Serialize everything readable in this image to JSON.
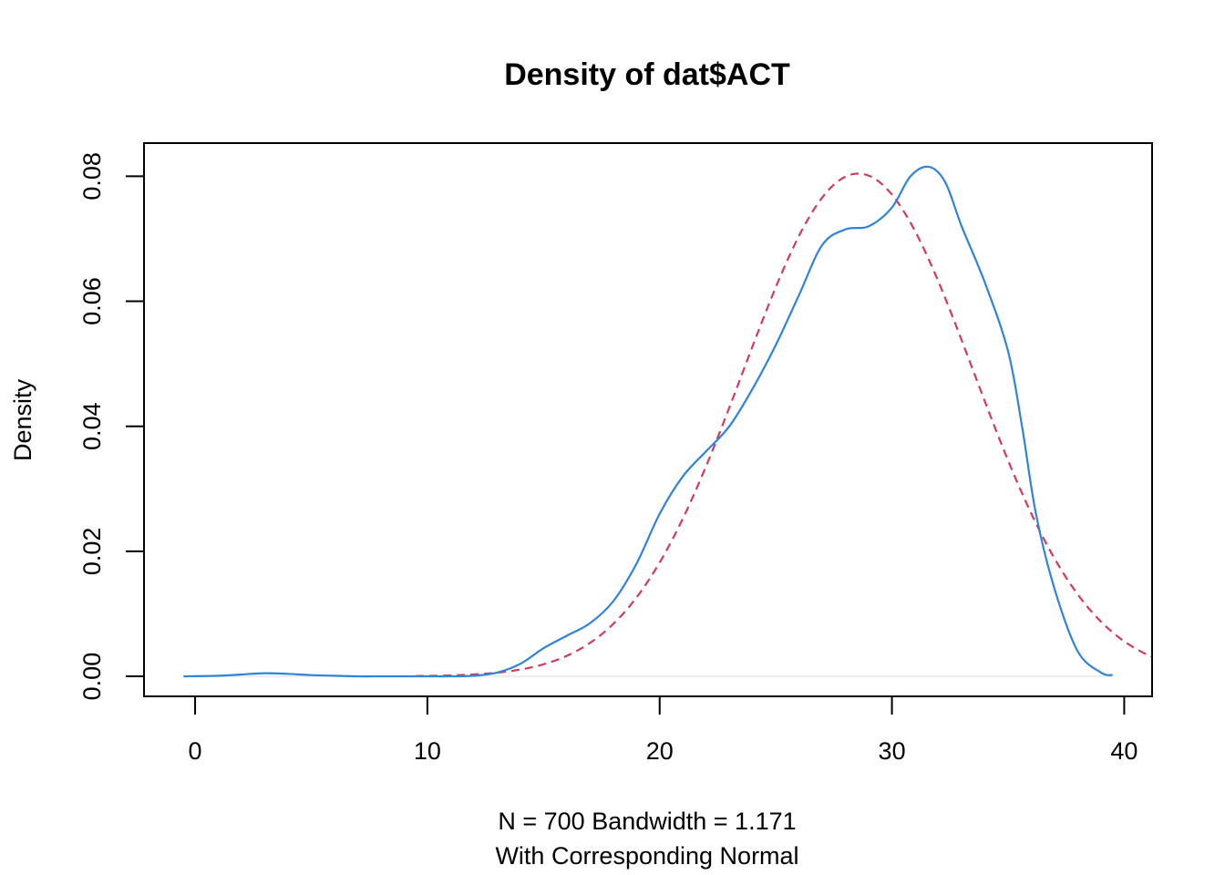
{
  "chart_data": {
    "type": "line",
    "title": "Density of  dat$ACT",
    "xlabel_line1": "N = 700   Bandwidth = 1.171",
    "xlabel_line2": "With Corresponding Normal",
    "ylabel": "Density",
    "xlim": [
      -2.2,
      41.2
    ],
    "ylim": [
      -0.0032,
      0.0853
    ],
    "x_ticks": [
      0,
      10,
      20,
      30,
      40
    ],
    "x_tick_labels": [
      "0",
      "10",
      "20",
      "30",
      "40"
    ],
    "y_ticks": [
      0.0,
      0.02,
      0.04,
      0.06,
      0.08
    ],
    "y_tick_labels": [
      "0.00",
      "0.02",
      "0.04",
      "0.06",
      "0.08"
    ],
    "grid": false,
    "zero_line": true,
    "colors": {
      "kde": "#2f83d9",
      "normal": "#d33a5c",
      "axis": "#000000",
      "zero_line": "#e8e8e8"
    },
    "series": [
      {
        "role": "kde",
        "style": "solid",
        "x": [
          -0.5,
          1,
          2,
          3,
          4,
          5,
          6,
          7,
          8,
          9,
          10,
          11,
          12,
          13,
          14,
          15,
          16,
          17,
          18,
          19,
          20,
          21,
          22,
          23,
          24,
          25,
          26,
          27,
          28,
          29,
          30,
          30.8,
          31.6,
          32.3,
          33,
          34,
          35,
          35.6,
          36.2,
          37,
          38,
          39,
          39.5
        ],
        "y": [
          0.0,
          0.0001,
          0.0003,
          0.0005,
          0.0004,
          0.0002,
          0.0001,
          0.0,
          0.0,
          0.0,
          0.0,
          0.0,
          0.0001,
          0.0006,
          0.002,
          0.0045,
          0.0065,
          0.0085,
          0.012,
          0.018,
          0.026,
          0.032,
          0.036,
          0.04,
          0.046,
          0.053,
          0.061,
          0.069,
          0.0715,
          0.072,
          0.075,
          0.08,
          0.0815,
          0.079,
          0.072,
          0.063,
          0.052,
          0.04,
          0.026,
          0.014,
          0.004,
          0.0006,
          0.0002
        ]
      },
      {
        "role": "normal",
        "style": "dashed",
        "mean": 28.55,
        "sd": 4.96
      }
    ]
  }
}
